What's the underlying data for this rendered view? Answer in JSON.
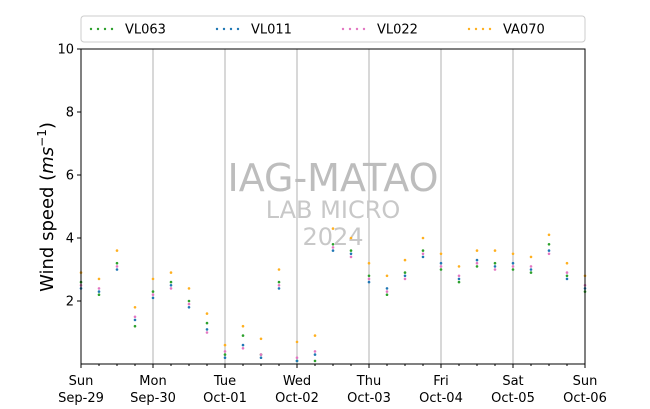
{
  "chart_data": {
    "type": "scatter",
    "ylabel_main": "Wind speed (",
    "ylabel_unit_base": "ms",
    "ylabel_unit_exp": "−1",
    "ylabel_close": ")",
    "ylim": [
      0,
      10
    ],
    "y_ticks": [
      2,
      4,
      6,
      8,
      10
    ],
    "x_ticks": [
      {
        "day": 0,
        "line1": "Sun",
        "line2": "Sep-29"
      },
      {
        "day": 1,
        "line1": "Mon",
        "line2": "Sep-30"
      },
      {
        "day": 2,
        "line1": "Tue",
        "line2": "Oct-01"
      },
      {
        "day": 3,
        "line1": "Wed",
        "line2": "Oct-02"
      },
      {
        "day": 4,
        "line1": "Thu",
        "line2": "Oct-03"
      },
      {
        "day": 5,
        "line1": "Fri",
        "line2": "Oct-04"
      },
      {
        "day": 6,
        "line1": "Sat",
        "line2": "Oct-05"
      },
      {
        "day": 7,
        "line1": "Sun",
        "line2": "Oct-06"
      }
    ],
    "xlim_days": [
      0,
      7
    ],
    "grid": "vertical",
    "legend_position": "top",
    "watermark": [
      "IAG-MATAO",
      "LAB MICRO",
      "2024"
    ],
    "x_key": "day",
    "series": [
      {
        "name": "VL063",
        "color": "#2ca02c",
        "points": [
          [
            0.0,
            2.6
          ],
          [
            0.25,
            2.2
          ],
          [
            0.5,
            3.2
          ],
          [
            0.75,
            1.2
          ],
          [
            1.0,
            2.3
          ],
          [
            1.25,
            2.6
          ],
          [
            1.5,
            2.0
          ],
          [
            1.75,
            1.3
          ],
          [
            2.0,
            0.3
          ],
          [
            2.25,
            0.9
          ],
          [
            2.5,
            0.3
          ],
          [
            2.75,
            2.6
          ],
          [
            3.0,
            0.1
          ],
          [
            3.25,
            0.1
          ],
          [
            3.5,
            3.8
          ],
          [
            3.75,
            3.6
          ],
          [
            4.0,
            2.8
          ],
          [
            4.25,
            2.2
          ],
          [
            4.5,
            2.9
          ],
          [
            4.75,
            3.6
          ],
          [
            5.0,
            3.0
          ],
          [
            5.25,
            2.6
          ],
          [
            5.5,
            3.1
          ],
          [
            5.75,
            3.2
          ],
          [
            6.0,
            3.0
          ],
          [
            6.25,
            2.9
          ],
          [
            6.5,
            3.8
          ],
          [
            6.75,
            2.8
          ],
          [
            7.0,
            2.3
          ]
        ]
      },
      {
        "name": "VL011",
        "color": "#1f77b4",
        "points": [
          [
            0.0,
            2.4
          ],
          [
            0.25,
            2.3
          ],
          [
            0.5,
            3.0
          ],
          [
            0.75,
            1.4
          ],
          [
            1.0,
            2.1
          ],
          [
            1.25,
            2.5
          ],
          [
            1.5,
            1.8
          ],
          [
            1.75,
            1.1
          ],
          [
            2.0,
            0.2
          ],
          [
            2.25,
            0.6
          ],
          [
            2.5,
            0.2
          ],
          [
            2.75,
            2.4
          ],
          [
            3.0,
            0.1
          ],
          [
            3.25,
            0.3
          ],
          [
            3.5,
            3.6
          ],
          [
            3.75,
            3.5
          ],
          [
            4.0,
            2.6
          ],
          [
            4.25,
            2.4
          ],
          [
            4.5,
            2.8
          ],
          [
            4.75,
            3.4
          ],
          [
            5.0,
            3.2
          ],
          [
            5.25,
            2.7
          ],
          [
            5.5,
            3.3
          ],
          [
            5.75,
            3.1
          ],
          [
            6.0,
            3.2
          ],
          [
            6.25,
            3.0
          ],
          [
            6.5,
            3.6
          ],
          [
            6.75,
            2.7
          ],
          [
            7.0,
            2.4
          ]
        ]
      },
      {
        "name": "VL022",
        "color": "#e377c2",
        "points": [
          [
            0.0,
            2.5
          ],
          [
            0.25,
            2.4
          ],
          [
            0.5,
            3.1
          ],
          [
            0.75,
            1.5
          ],
          [
            1.0,
            2.2
          ],
          [
            1.25,
            2.4
          ],
          [
            1.5,
            1.9
          ],
          [
            1.75,
            1.0
          ],
          [
            2.0,
            0.4
          ],
          [
            2.25,
            0.5
          ],
          [
            2.5,
            0.3
          ],
          [
            2.75,
            2.5
          ],
          [
            3.0,
            0.2
          ],
          [
            3.25,
            0.4
          ],
          [
            3.5,
            3.7
          ],
          [
            3.75,
            3.4
          ],
          [
            4.0,
            2.7
          ],
          [
            4.25,
            2.3
          ],
          [
            4.5,
            2.7
          ],
          [
            4.75,
            3.5
          ],
          [
            5.0,
            3.1
          ],
          [
            5.25,
            2.8
          ],
          [
            5.5,
            3.2
          ],
          [
            5.75,
            3.0
          ],
          [
            6.0,
            3.1
          ],
          [
            6.25,
            3.1
          ],
          [
            6.5,
            3.5
          ],
          [
            6.75,
            2.9
          ],
          [
            7.0,
            2.5
          ]
        ]
      },
      {
        "name": "VA070",
        "color": "#ffb01f",
        "points": [
          [
            0.0,
            2.9
          ],
          [
            0.25,
            2.7
          ],
          [
            0.5,
            3.6
          ],
          [
            0.75,
            1.8
          ],
          [
            1.0,
            2.7
          ],
          [
            1.25,
            2.9
          ],
          [
            1.5,
            2.4
          ],
          [
            1.75,
            1.6
          ],
          [
            2.0,
            0.6
          ],
          [
            2.25,
            1.2
          ],
          [
            2.5,
            0.8
          ],
          [
            2.75,
            3.0
          ],
          [
            3.0,
            0.7
          ],
          [
            3.25,
            0.9
          ],
          [
            3.5,
            4.3
          ],
          [
            3.75,
            4.0
          ],
          [
            4.0,
            3.2
          ],
          [
            4.25,
            2.8
          ],
          [
            4.5,
            3.3
          ],
          [
            4.75,
            4.0
          ],
          [
            5.0,
            3.5
          ],
          [
            5.25,
            3.1
          ],
          [
            5.5,
            3.6
          ],
          [
            5.75,
            3.6
          ],
          [
            6.0,
            3.5
          ],
          [
            6.25,
            3.4
          ],
          [
            6.5,
            4.1
          ],
          [
            6.75,
            3.2
          ],
          [
            7.0,
            2.8
          ]
        ]
      }
    ]
  }
}
